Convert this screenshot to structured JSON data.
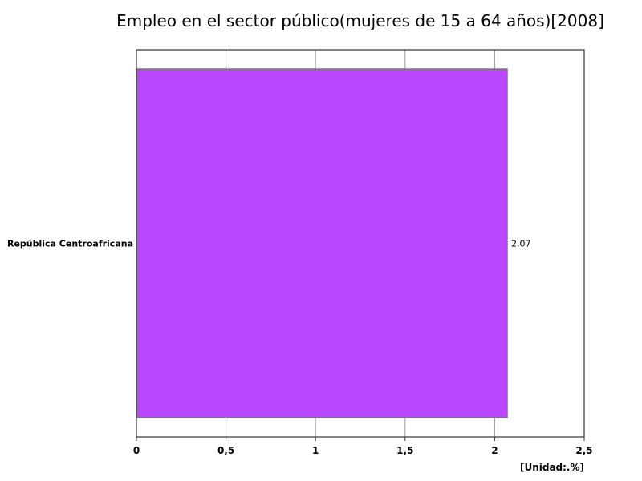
{
  "chart_data": {
    "type": "bar",
    "orientation": "horizontal",
    "title": "Empleo en el sector público(mujeres de 15 a 64 años)[2008]",
    "categories": [
      "República Centroafricana"
    ],
    "values": [
      2.07
    ],
    "value_labels": [
      "2.07"
    ],
    "xlim": [
      0,
      2.5
    ],
    "x_ticks": [
      0,
      0.5,
      1,
      1.5,
      2,
      2.5
    ],
    "x_tick_labels": [
      "0",
      "0,5",
      "1",
      "1,5",
      "2",
      "2,5"
    ],
    "unit_label": "[Unidad:.%]",
    "bar_color": "#b847ff",
    "grid": true,
    "legend": false
  }
}
